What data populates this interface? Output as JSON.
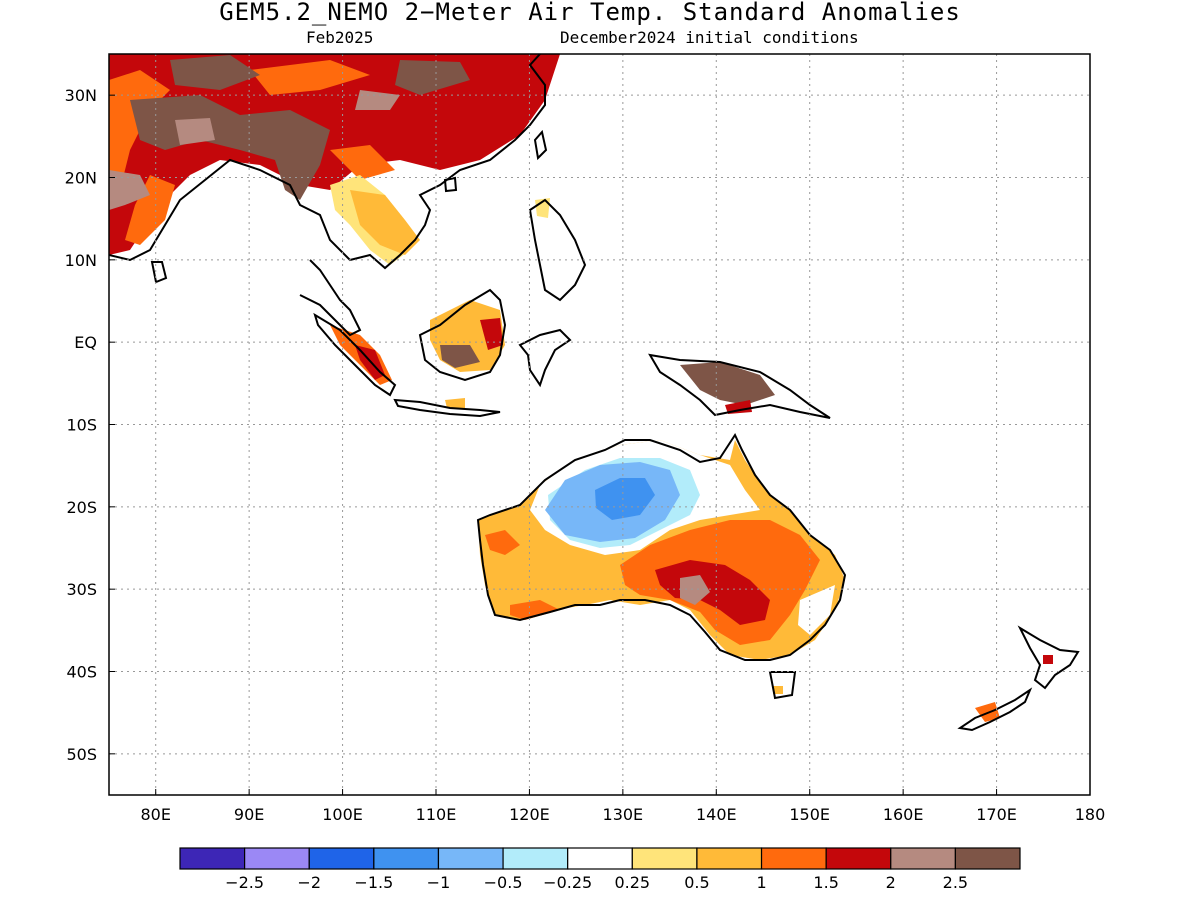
{
  "title": "GEM5.2_NEMO 2−Meter Air Temp. Standard Anomalies",
  "subtitle_left": "Feb2025",
  "subtitle_right": "December2024 initial conditions",
  "axes": {
    "lon_labels": [
      "80E",
      "90E",
      "100E",
      "110E",
      "120E",
      "130E",
      "140E",
      "150E",
      "160E",
      "170E",
      "180"
    ],
    "lon_values": [
      80,
      90,
      100,
      110,
      120,
      130,
      140,
      150,
      160,
      170,
      180
    ],
    "lat_labels": [
      "30N",
      "20N",
      "10N",
      "EQ",
      "10S",
      "20S",
      "30S",
      "40S",
      "50S"
    ],
    "lat_values": [
      30,
      20,
      10,
      0,
      -10,
      -20,
      -30,
      -40,
      -50
    ],
    "lon_range": [
      75,
      180
    ],
    "lat_range": [
      -55,
      35
    ],
    "grid": "dotted"
  },
  "legend": {
    "colors": [
      "#3d26b6",
      "#9b88f5",
      "#1f64e8",
      "#3f92f0",
      "#77b7f8",
      "#b2ecfa",
      "#ffffff",
      "#ffe47a",
      "#ffba38",
      "#ff6a0d",
      "#c4070b",
      "#b58a80",
      "#7e5547"
    ],
    "labels": [
      "−2.5",
      "−2",
      "−1.5",
      "−1",
      "−0.5",
      "−0.25",
      "0.25",
      "0.5",
      "1",
      "1.5",
      "2",
      "2.5"
    ]
  }
}
